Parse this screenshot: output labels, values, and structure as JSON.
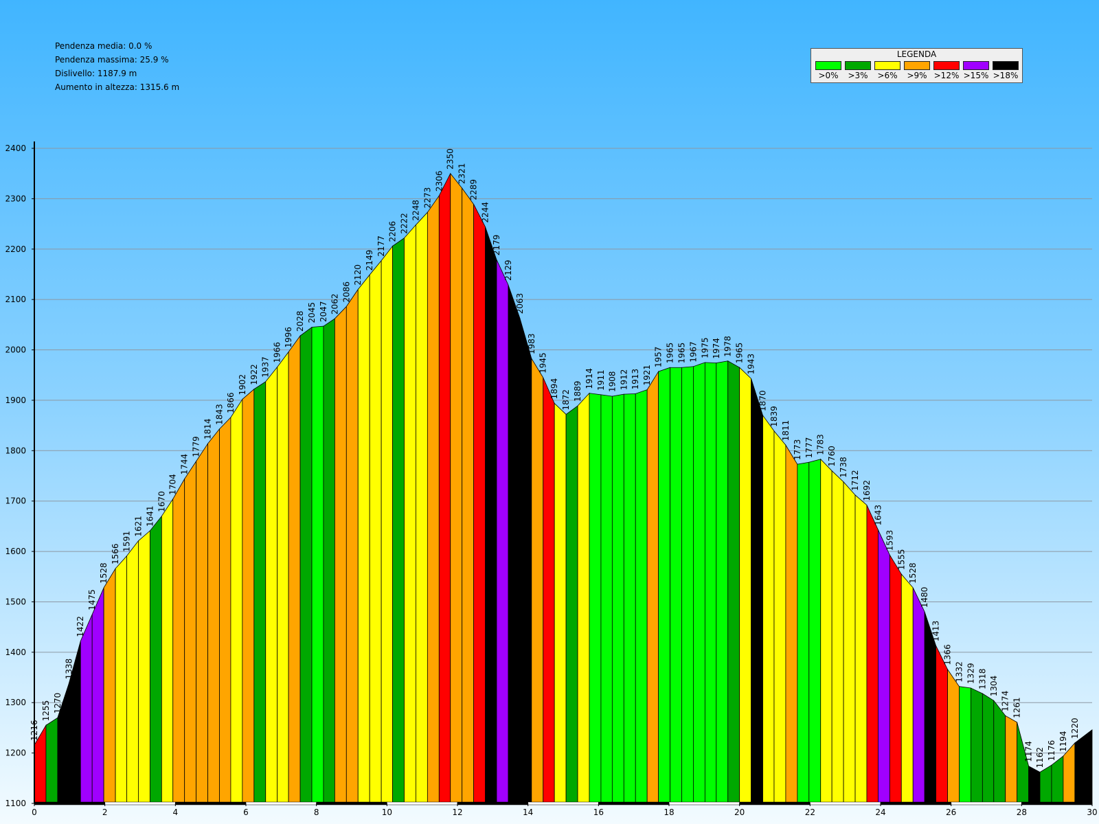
{
  "stats": {
    "pendenza_media": "Pendenza media: 0.0 %",
    "pendenza_massima": "Pendenza massima: 25.9 %",
    "dislivello": "Dislivello: 1187.9 m",
    "aumento": "Aumento in altezza: 1315.6 m"
  },
  "legend": {
    "title": "LEGENDA",
    "items": [
      {
        "label": ">0%",
        "color": "#00ff00"
      },
      {
        "label": ">3%",
        "color": "#00a800"
      },
      {
        "label": ">6%",
        "color": "#ffff00"
      },
      {
        "label": ">9%",
        "color": "#ffa500"
      },
      {
        "label": ">12%",
        "color": "#ff0000"
      },
      {
        "label": ">15%",
        "color": "#a000ff"
      },
      {
        "label": ">18%",
        "color": "#000000"
      }
    ]
  },
  "chart_data": {
    "type": "area",
    "ylim": [
      1100,
      2400
    ],
    "xlim": [
      0,
      30
    ],
    "yticks": [
      1100,
      1200,
      1300,
      1400,
      1500,
      1600,
      1700,
      1800,
      1900,
      2000,
      2100,
      2200,
      2300,
      2400
    ],
    "xticks": [
      0,
      2,
      4,
      6,
      8,
      10,
      12,
      14,
      16,
      18,
      20,
      22,
      24,
      26,
      28,
      30
    ],
    "grid": true,
    "class_colors": [
      "#00ff00",
      "#00a800",
      "#ffff00",
      "#ffa500",
      "#ff0000",
      "#a000ff",
      "#000000"
    ],
    "points": [
      {
        "x": 0.0,
        "y": 1216,
        "label": "1216"
      },
      {
        "x": 0.33,
        "y": 1255,
        "label": "1255"
      },
      {
        "x": 0.66,
        "y": 1270,
        "label": "1270"
      },
      {
        "x": 0.98,
        "y": 1338,
        "label": "1338"
      },
      {
        "x": 1.31,
        "y": 1422,
        "label": "1422"
      },
      {
        "x": 1.64,
        "y": 1475,
        "label": "1475"
      },
      {
        "x": 1.97,
        "y": 1528,
        "label": "1528"
      },
      {
        "x": 2.3,
        "y": 1566,
        "label": "1566"
      },
      {
        "x": 2.62,
        "y": 1591,
        "label": "1591"
      },
      {
        "x": 2.95,
        "y": 1621,
        "label": "1621"
      },
      {
        "x": 3.28,
        "y": 1641,
        "label": "1641"
      },
      {
        "x": 3.61,
        "y": 1670,
        "label": "1670"
      },
      {
        "x": 3.93,
        "y": 1704,
        "label": "1704"
      },
      {
        "x": 4.26,
        "y": 1744,
        "label": "1744"
      },
      {
        "x": 4.59,
        "y": 1779,
        "label": "1779"
      },
      {
        "x": 4.92,
        "y": 1814,
        "label": "1814"
      },
      {
        "x": 5.25,
        "y": 1843,
        "label": "1843"
      },
      {
        "x": 5.57,
        "y": 1866,
        "label": "1866"
      },
      {
        "x": 5.9,
        "y": 1902,
        "label": "1902"
      },
      {
        "x": 6.23,
        "y": 1922,
        "label": "1922"
      },
      {
        "x": 6.56,
        "y": 1937,
        "label": "1937"
      },
      {
        "x": 6.89,
        "y": 1966,
        "label": "1966"
      },
      {
        "x": 7.21,
        "y": 1996,
        "label": "1996"
      },
      {
        "x": 7.54,
        "y": 2028,
        "label": "2028"
      },
      {
        "x": 7.87,
        "y": 2045,
        "label": "2045"
      },
      {
        "x": 8.2,
        "y": 2047,
        "label": "2047"
      },
      {
        "x": 8.52,
        "y": 2062,
        "label": "2062"
      },
      {
        "x": 8.85,
        "y": 2086,
        "label": "2086"
      },
      {
        "x": 9.18,
        "y": 2120,
        "label": "2120"
      },
      {
        "x": 9.51,
        "y": 2149,
        "label": "2149"
      },
      {
        "x": 9.84,
        "y": 2177,
        "label": "2177"
      },
      {
        "x": 10.16,
        "y": 2206,
        "label": "2206"
      },
      {
        "x": 10.49,
        "y": 2222,
        "label": "2222"
      },
      {
        "x": 10.82,
        "y": 2248,
        "label": "2248"
      },
      {
        "x": 11.15,
        "y": 2273,
        "label": "2273"
      },
      {
        "x": 11.48,
        "y": 2306,
        "label": "2306"
      },
      {
        "x": 11.8,
        "y": 2350,
        "label": "2350"
      },
      {
        "x": 12.13,
        "y": 2321,
        "label": "2321"
      },
      {
        "x": 12.46,
        "y": 2289,
        "label": "2289"
      },
      {
        "x": 12.79,
        "y": 2244,
        "label": "2244"
      },
      {
        "x": 13.11,
        "y": 2179,
        "label": "2179"
      },
      {
        "x": 13.44,
        "y": 2129,
        "label": "2129"
      },
      {
        "x": 13.77,
        "y": 2063,
        "label": "2063"
      },
      {
        "x": 14.1,
        "y": 1983,
        "label": "1983"
      },
      {
        "x": 14.43,
        "y": 1945,
        "label": "1945"
      },
      {
        "x": 14.75,
        "y": 1894,
        "label": "1894"
      },
      {
        "x": 15.08,
        "y": 1872,
        "label": "1872"
      },
      {
        "x": 15.41,
        "y": 1889,
        "label": "1889"
      },
      {
        "x": 15.74,
        "y": 1914,
        "label": "1914"
      },
      {
        "x": 16.07,
        "y": 1911,
        "label": "1911"
      },
      {
        "x": 16.39,
        "y": 1908,
        "label": "1908"
      },
      {
        "x": 16.72,
        "y": 1912,
        "label": "1912"
      },
      {
        "x": 17.05,
        "y": 1913,
        "label": "1913"
      },
      {
        "x": 17.38,
        "y": 1921,
        "label": "1921"
      },
      {
        "x": 17.7,
        "y": 1957,
        "label": "1957"
      },
      {
        "x": 18.03,
        "y": 1965,
        "label": "1965"
      },
      {
        "x": 18.36,
        "y": 1965,
        "label": "1965"
      },
      {
        "x": 18.69,
        "y": 1967,
        "label": "1967"
      },
      {
        "x": 19.02,
        "y": 1975,
        "label": "1975"
      },
      {
        "x": 19.34,
        "y": 1974,
        "label": "1974"
      },
      {
        "x": 19.67,
        "y": 1978,
        "label": "1978"
      },
      {
        "x": 20.0,
        "y": 1965,
        "label": "1965"
      },
      {
        "x": 20.33,
        "y": 1943,
        "label": "1943"
      },
      {
        "x": 20.66,
        "y": 1870,
        "label": "1870"
      },
      {
        "x": 20.98,
        "y": 1839,
        "label": "1839"
      },
      {
        "x": 21.31,
        "y": 1811,
        "label": "1811"
      },
      {
        "x": 21.64,
        "y": 1773,
        "label": "1773"
      },
      {
        "x": 21.97,
        "y": 1777,
        "label": "1777"
      },
      {
        "x": 22.3,
        "y": 1783,
        "label": "1783"
      },
      {
        "x": 22.62,
        "y": 1760,
        "label": "1760"
      },
      {
        "x": 22.95,
        "y": 1738,
        "label": "1738"
      },
      {
        "x": 23.28,
        "y": 1712,
        "label": "1712"
      },
      {
        "x": 23.61,
        "y": 1692,
        "label": "1692"
      },
      {
        "x": 23.93,
        "y": 1643,
        "label": "1643"
      },
      {
        "x": 24.26,
        "y": 1593,
        "label": "1593"
      },
      {
        "x": 24.59,
        "y": 1555,
        "label": "1555"
      },
      {
        "x": 24.92,
        "y": 1528,
        "label": "1528"
      },
      {
        "x": 25.25,
        "y": 1480,
        "label": "1480"
      },
      {
        "x": 25.57,
        "y": 1413,
        "label": "1413"
      },
      {
        "x": 25.9,
        "y": 1366,
        "label": "1366"
      },
      {
        "x": 26.23,
        "y": 1332,
        "label": "1332"
      },
      {
        "x": 26.56,
        "y": 1329,
        "label": "1329"
      },
      {
        "x": 26.89,
        "y": 1318,
        "label": "1318"
      },
      {
        "x": 27.21,
        "y": 1304,
        "label": "1304"
      },
      {
        "x": 27.54,
        "y": 1274,
        "label": "1274"
      },
      {
        "x": 27.87,
        "y": 1261,
        "label": "1261"
      },
      {
        "x": 28.2,
        "y": 1174,
        "label": "1174"
      },
      {
        "x": 28.52,
        "y": 1162,
        "label": "1162"
      },
      {
        "x": 28.85,
        "y": 1176,
        "label": "1176"
      },
      {
        "x": 29.18,
        "y": 1194,
        "label": "1194"
      },
      {
        "x": 29.51,
        "y": 1220,
        "label": "1220"
      }
    ],
    "segment_classes": [
      4,
      1,
      6,
      6,
      5,
      5,
      3,
      2,
      2,
      2,
      1,
      2,
      3,
      3,
      3,
      3,
      3,
      2,
      3,
      1,
      2,
      2,
      3,
      1,
      0,
      1,
      3,
      3,
      2,
      2,
      2,
      1,
      2,
      2,
      3,
      4,
      3,
      3,
      4,
      6,
      5,
      6,
      6,
      3,
      4,
      2,
      1,
      2,
      0,
      0,
      0,
      0,
      0,
      3,
      0,
      0,
      0,
      0,
      0,
      0,
      1,
      2,
      6,
      2,
      2,
      3,
      0,
      0,
      2,
      2,
      2,
      2,
      4,
      5,
      4,
      2,
      5,
      6,
      4,
      3,
      0,
      1,
      1,
      1,
      3,
      1,
      6,
      1,
      1,
      3
    ]
  }
}
